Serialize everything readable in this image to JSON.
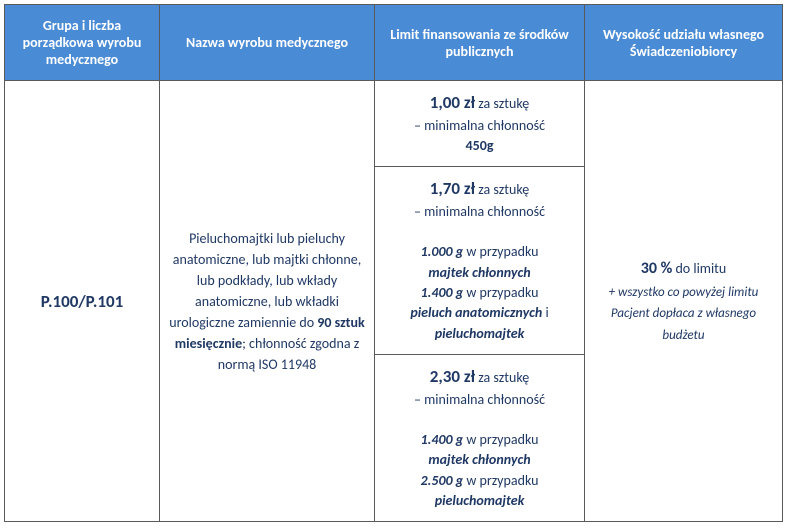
{
  "colors": {
    "header_bg": "#4a8bd6",
    "header_text": "#ffffff",
    "body_text": "#1f3864",
    "border": "#5a5a5a"
  },
  "headers": {
    "col1": "Grupa i liczba porządkowa wyrobu medycznego",
    "col2": "Nazwa wyrobu medycznego",
    "col3": "Limit finansowania ze środków publicznych",
    "col4": "Wysokość udziału własnego Świadczeniobiorcy"
  },
  "row": {
    "code": "P.100/P.101",
    "desc": {
      "pre": "Pieluchomajtki lub pieluchy anatomiczne, lub majtki chłonne, lub podkłady, lub wkłady anatomiczne, lub wkładki urologiczne zamiennie do ",
      "bold": "90 sztuk miesięcznie",
      "post": "; chłonność zgodna z normą ISO 11948"
    },
    "limits": [
      {
        "price": "1,00 zł",
        "unit": " za sztukę",
        "sub": "– minimalna chłonność ",
        "val": "450g"
      },
      {
        "price": "1,70 zł",
        "unit": " za sztukę",
        "sub": "– minimalna chłonność",
        "lines": [
          {
            "val": "1.000 g",
            "txt": " w przypadku ",
            "prod": "majtek chłonnych"
          },
          {
            "val": "1.400 g",
            "txt": " w przypadku ",
            "prod": "pieluch anatomicznych",
            "tail": " i ",
            "prod2": "pieluchomajtek"
          }
        ]
      },
      {
        "price": "2,30 zł",
        "unit": " za sztukę",
        "sub": "– minimalna chłonność",
        "lines": [
          {
            "val": "1.400 g",
            "txt": " w przypadku ",
            "prod": "majtek chłonnych"
          },
          {
            "val": "2.500 g",
            "txt": " w przypadku ",
            "prod": "pieluchomajtek"
          }
        ]
      }
    ],
    "own": {
      "pct": "30 %",
      "txt": " do limitu",
      "note": "+ wszystko co powyżej limitu Pacjent dopłaca z własnego budżetu"
    }
  }
}
